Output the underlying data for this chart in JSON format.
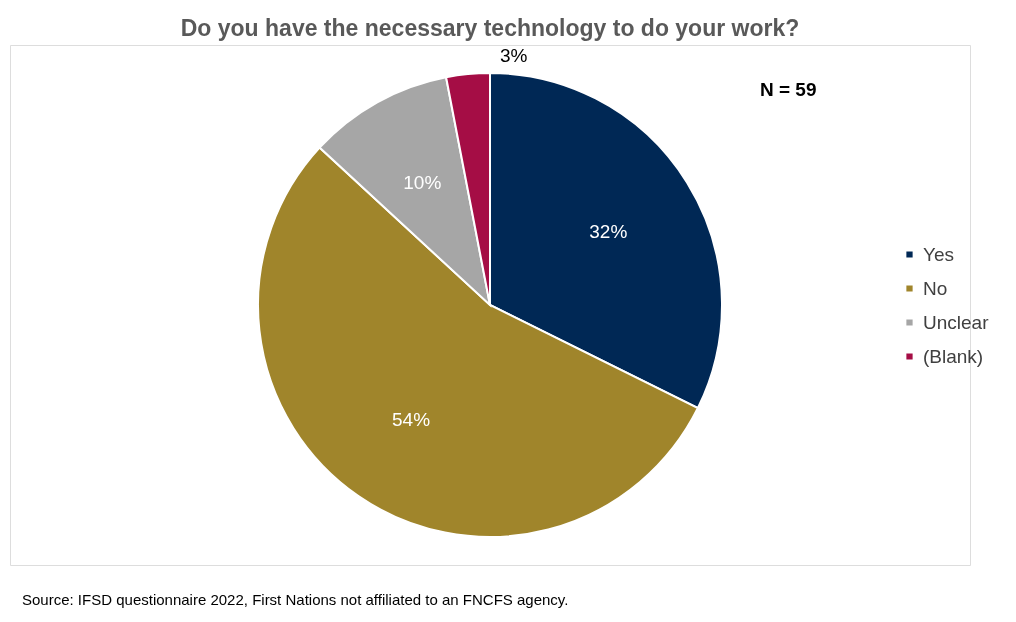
{
  "chart_data": {
    "type": "pie",
    "title": "Do you have the necessary technology to do your work?",
    "categories": [
      "Yes",
      "No",
      "Unclear",
      "(Blank)"
    ],
    "values": [
      32,
      54,
      10,
      3
    ],
    "colors": [
      "#002855",
      "#a0852b",
      "#a6a6a6",
      "#a50d45"
    ],
    "value_labels": [
      "32%",
      "54%",
      "10%",
      "3%"
    ],
    "legend": "right",
    "annotations": [
      "N = 59",
      "Source: IFSD questionnaire 2022, First Nations not affiliated to an FNCFS agency."
    ]
  }
}
